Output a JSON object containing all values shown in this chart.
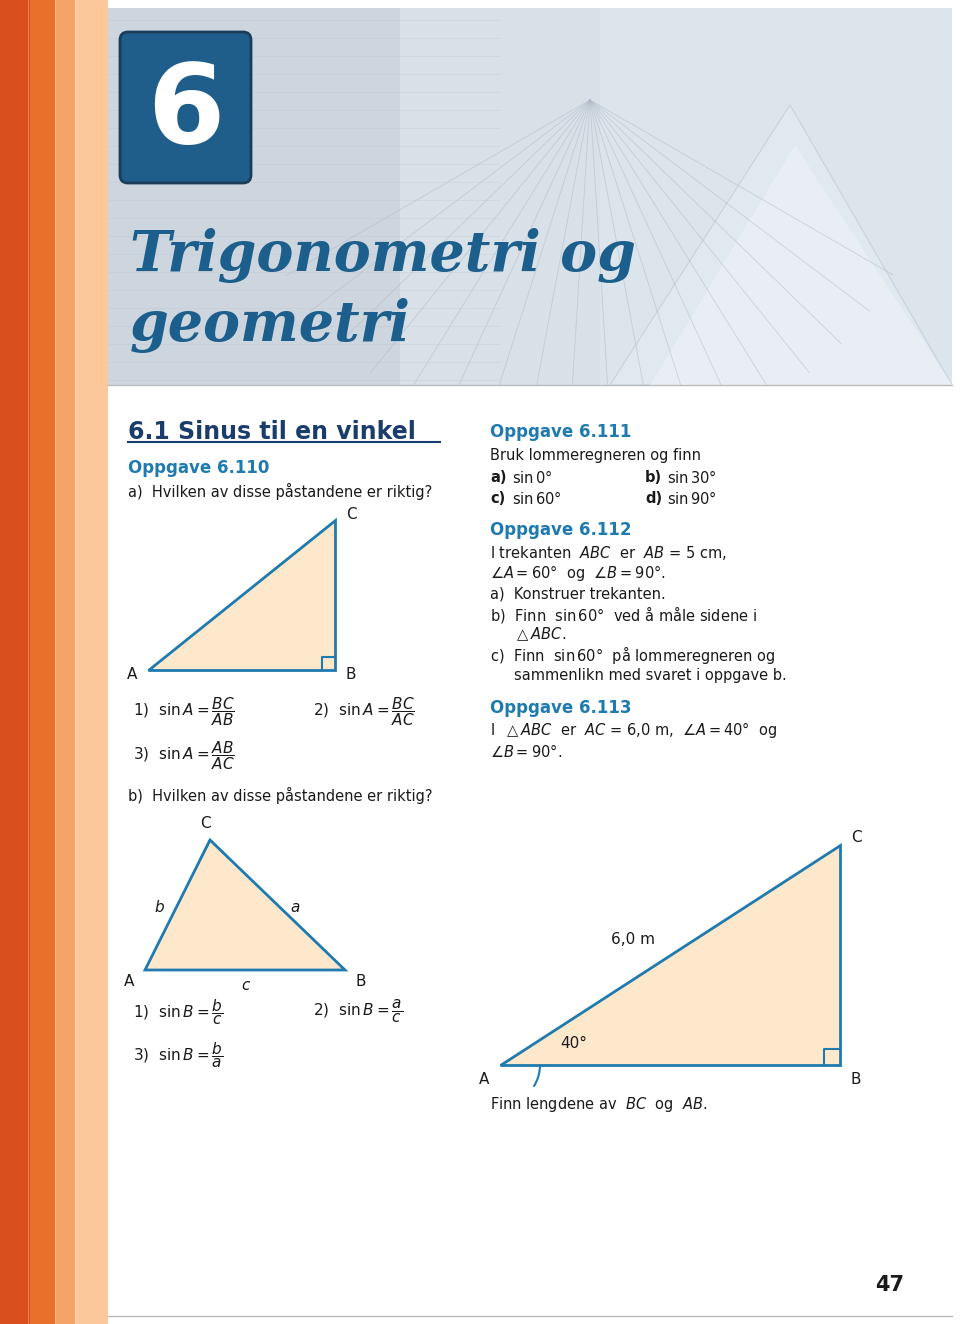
{
  "page_bg": "#ffffff",
  "header_bg": "#cdd5de",
  "chapter_box_color": "#1f5e8a",
  "chapter_number": "6",
  "title_line1": "Trigonometri og",
  "title_line2": "geometri",
  "title_color": "#1c5f8c",
  "section_title": "6.1 Sinus til en vinkel",
  "section_title_color": "#1a3d6b",
  "oppgave_header_color": "#1f7ab0",
  "text_color": "#1a1a1a",
  "triangle_fill": "#fde8cc",
  "triangle_stroke": "#1f7ab0",
  "left_red": "#d94f1e",
  "left_orange": "#e8702a",
  "left_peach": "#f5a468",
  "left_light": "#fac89a",
  "header_light": "#dce3ea",
  "header_mid": "#c8d2dc",
  "page_num": "47"
}
